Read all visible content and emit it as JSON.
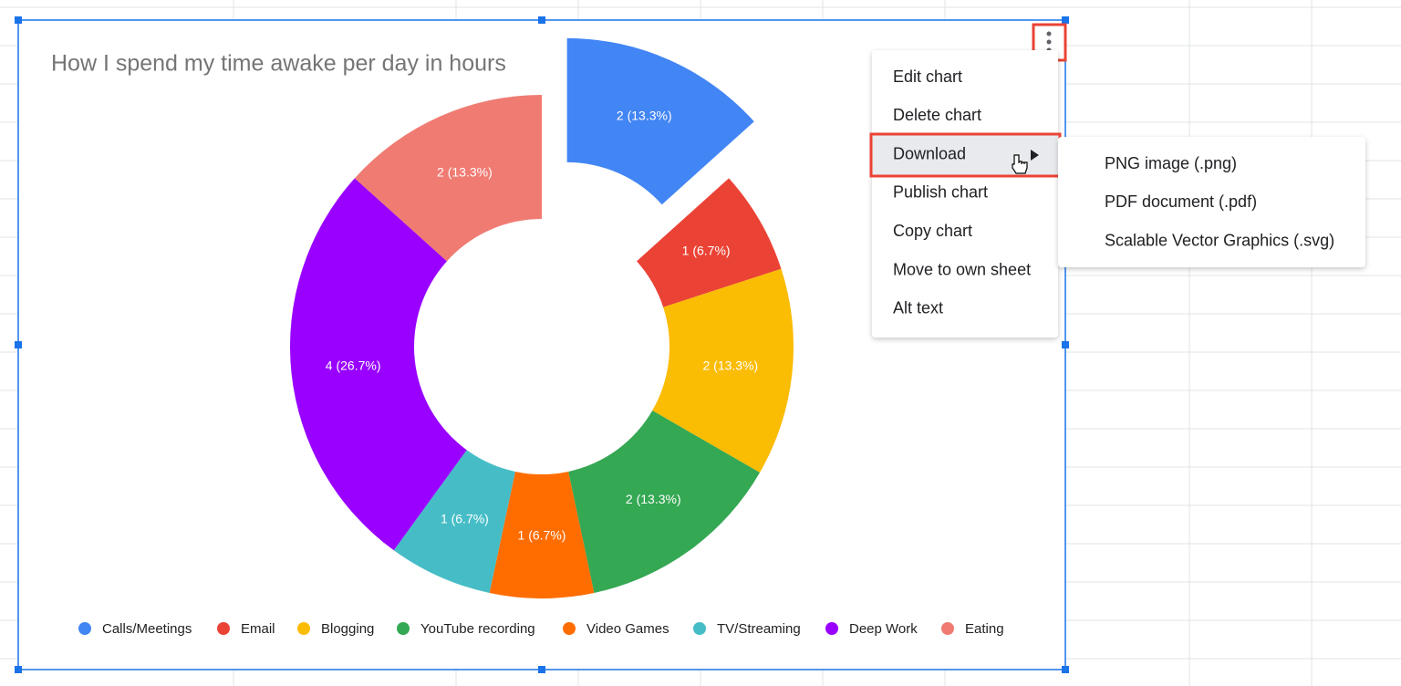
{
  "chart_data": {
    "type": "donut",
    "title": "How I spend my time awake per day in hours",
    "categories": [
      "Calls/Meetings",
      "Email",
      "Blogging",
      "YouTube recording",
      "Video Games",
      "TV/Streaming",
      "Deep Work",
      "Eating"
    ],
    "values": [
      2,
      1,
      2,
      2,
      1,
      1,
      4,
      2
    ],
    "value_labels": [
      "2 (13.3%)",
      "1 (6.7%)",
      "2 (13.3%)",
      "2 (13.3%)",
      "1 (6.7%)",
      "1 (6.7%)",
      "4 (26.7%)",
      "2 (13.3%)"
    ],
    "colors": [
      "#4285f4",
      "#ea4335",
      "#fbbc04",
      "#34a853",
      "#ff6d01",
      "#46bdc6",
      "#9900ff",
      "#f07b72"
    ],
    "exploded": "Calls/Meetings",
    "legend": "bottom"
  },
  "menu": {
    "items": [
      "Edit chart",
      "Delete chart",
      "Download",
      "Publish chart",
      "Copy chart",
      "Move to own sheet",
      "Alt text"
    ],
    "submenu": {
      "items": [
        "PNG image (.png)",
        "PDF document (.pdf)",
        "Scalable Vector Graphics (.svg)"
      ]
    }
  }
}
